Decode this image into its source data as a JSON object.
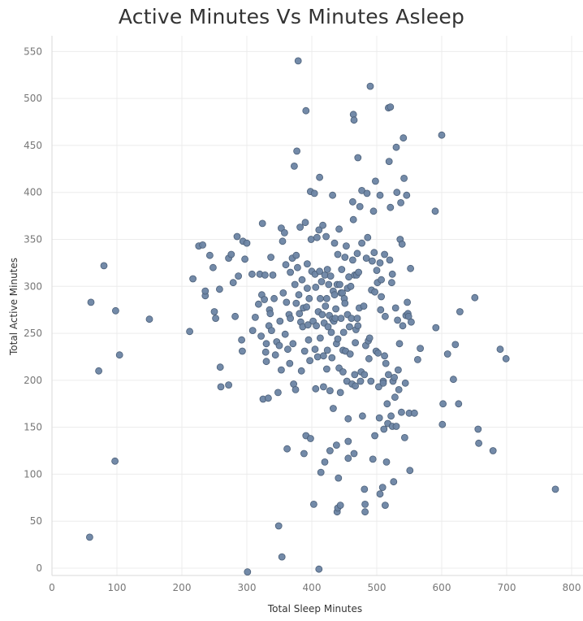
{
  "chart_data": {
    "type": "scatter",
    "title": "Active Minutes Vs Minutes Asleep",
    "xlabel": "Total Sleep Minutes",
    "ylabel": "Total Active Minutes",
    "xlim": [
      0,
      800
    ],
    "ylim": [
      0,
      550
    ],
    "xticks": [
      "0",
      "100",
      "200",
      "300",
      "400",
      "500",
      "600",
      "700",
      "800"
    ],
    "yticks": [
      "0",
      "50",
      "100",
      "150",
      "200",
      "250",
      "300",
      "350",
      "400",
      "450",
      "500",
      "550"
    ],
    "grid": true,
    "legend": "none",
    "marker_color": "#6b84a3",
    "marker_edge_color": "#4b5f78",
    "points": [
      [
        58,
        33
      ],
      [
        60,
        283
      ],
      [
        72,
        210
      ],
      [
        80,
        322
      ],
      [
        97,
        114
      ],
      [
        98,
        274
      ],
      [
        104,
        227
      ],
      [
        150,
        265
      ],
      [
        212,
        252
      ],
      [
        217,
        308
      ],
      [
        226,
        343
      ],
      [
        232,
        344
      ],
      [
        236,
        290
      ],
      [
        236,
        295
      ],
      [
        243,
        333
      ],
      [
        248,
        320
      ],
      [
        250,
        273
      ],
      [
        252,
        266
      ],
      [
        258,
        297
      ],
      [
        259,
        214
      ],
      [
        260,
        193
      ],
      [
        272,
        195
      ],
      [
        272,
        330
      ],
      [
        276,
        334
      ],
      [
        279,
        304
      ],
      [
        282,
        268
      ],
      [
        285,
        353
      ],
      [
        287,
        311
      ],
      [
        292,
        243
      ],
      [
        293,
        231
      ],
      [
        294,
        348
      ],
      [
        297,
        329
      ],
      [
        300,
        346
      ],
      [
        301,
        -4
      ],
      [
        308,
        313
      ],
      [
        309,
        253
      ],
      [
        313,
        267
      ],
      [
        318,
        281
      ],
      [
        320,
        313
      ],
      [
        322,
        247
      ],
      [
        323,
        291
      ],
      [
        324,
        367
      ],
      [
        325,
        180
      ],
      [
        327,
        286
      ],
      [
        328,
        312
      ],
      [
        329,
        230
      ],
      [
        330,
        220
      ],
      [
        330,
        239
      ],
      [
        333,
        181
      ],
      [
        334,
        258
      ],
      [
        335,
        275
      ],
      [
        336,
        271
      ],
      [
        337,
        331
      ],
      [
        338,
        253
      ],
      [
        340,
        312
      ],
      [
        342,
        287
      ],
      [
        344,
        227
      ],
      [
        346,
        241
      ],
      [
        348,
        187
      ],
      [
        349,
        45
      ],
      [
        350,
        237
      ],
      [
        351,
        263
      ],
      [
        353,
        362
      ],
      [
        353,
        211
      ],
      [
        354,
        12
      ],
      [
        355,
        348
      ],
      [
        356,
        293
      ],
      [
        358,
        357
      ],
      [
        359,
        249
      ],
      [
        360,
        323
      ],
      [
        361,
        283
      ],
      [
        362,
        127
      ],
      [
        363,
        233
      ],
      [
        365,
        270
      ],
      [
        366,
        218
      ],
      [
        367,
        315
      ],
      [
        367,
        266
      ],
      [
        370,
        330
      ],
      [
        371,
        239
      ],
      [
        372,
        196
      ],
      [
        373,
        428
      ],
      [
        374,
        302
      ],
      [
        375,
        190
      ],
      [
        376,
        333
      ],
      [
        376,
        282
      ],
      [
        377,
        444
      ],
      [
        378,
        320
      ],
      [
        379,
        540
      ],
      [
        380,
        291
      ],
      [
        381,
        271
      ],
      [
        382,
        363
      ],
      [
        383,
        262
      ],
      [
        384,
        210
      ],
      [
        385,
        307
      ],
      [
        386,
        257
      ],
      [
        387,
        277
      ],
      [
        388,
        122
      ],
      [
        389,
        231
      ],
      [
        390,
        368
      ],
      [
        391,
        487
      ],
      [
        391,
        141
      ],
      [
        392,
        278
      ],
      [
        393,
        324
      ],
      [
        393,
        298
      ],
      [
        394,
        259
      ],
      [
        395,
        243
      ],
      [
        396,
        287
      ],
      [
        397,
        221
      ],
      [
        398,
        401
      ],
      [
        398,
        138
      ],
      [
        399,
        350
      ],
      [
        400,
        316
      ],
      [
        402,
        263
      ],
      [
        403,
        68
      ],
      [
        404,
        399
      ],
      [
        405,
        313
      ],
      [
        405,
        233
      ],
      [
        406,
        191
      ],
      [
        406,
        299
      ],
      [
        407,
        258
      ],
      [
        408,
        352
      ],
      [
        409,
        225
      ],
      [
        410,
        273
      ],
      [
        411,
        -1
      ],
      [
        411,
        360
      ],
      [
        412,
        316
      ],
      [
        412,
        416
      ],
      [
        413,
        287
      ],
      [
        413,
        245
      ],
      [
        414,
        102
      ],
      [
        415,
        305
      ],
      [
        416,
        270
      ],
      [
        417,
        365
      ],
      [
        418,
        226
      ],
      [
        418,
        193
      ],
      [
        419,
        261
      ],
      [
        420,
        312
      ],
      [
        420,
        113
      ],
      [
        421,
        279
      ],
      [
        422,
        353
      ],
      [
        423,
        287
      ],
      [
        423,
        212
      ],
      [
        424,
        318
      ],
      [
        424,
        232
      ],
      [
        425,
        257
      ],
      [
        426,
        302
      ],
      [
        427,
        269
      ],
      [
        428,
        189
      ],
      [
        428,
        125
      ],
      [
        429,
        311
      ],
      [
        430,
        251
      ],
      [
        431,
        224
      ],
      [
        432,
        265
      ],
      [
        432,
        397
      ],
      [
        433,
        170
      ],
      [
        433,
        295
      ],
      [
        434,
        263
      ],
      [
        435,
        346
      ],
      [
        435,
        291
      ],
      [
        436,
        266
      ],
      [
        437,
        276
      ],
      [
        438,
        239
      ],
      [
        438,
        131
      ],
      [
        439,
        60
      ],
      [
        439,
        302
      ],
      [
        440,
        334
      ],
      [
        440,
        64
      ],
      [
        440,
        244
      ],
      [
        441,
        96
      ],
      [
        442,
        361
      ],
      [
        442,
        213
      ],
      [
        443,
        302
      ],
      [
        444,
        67
      ],
      [
        444,
        187
      ],
      [
        445,
        266
      ],
      [
        445,
        293
      ],
      [
        446,
        318
      ],
      [
        447,
        293
      ],
      [
        448,
        232
      ],
      [
        448,
        209
      ],
      [
        449,
        251
      ],
      [
        450,
        287
      ],
      [
        451,
        282
      ],
      [
        451,
        331
      ],
      [
        452,
        231
      ],
      [
        453,
        343
      ],
      [
        454,
        199
      ],
      [
        455,
        270
      ],
      [
        455,
        298
      ],
      [
        456,
        159
      ],
      [
        456,
        135
      ],
      [
        456,
        117
      ],
      [
        457,
        310
      ],
      [
        458,
        257
      ],
      [
        459,
        228
      ],
      [
        460,
        300
      ],
      [
        461,
        266
      ],
      [
        462,
        196
      ],
      [
        463,
        390
      ],
      [
        463,
        328
      ],
      [
        464,
        483
      ],
      [
        464,
        371
      ],
      [
        465,
        477
      ],
      [
        465,
        122
      ],
      [
        466,
        312
      ],
      [
        466,
        206
      ],
      [
        467,
        240
      ],
      [
        467,
        194
      ],
      [
        468,
        254
      ],
      [
        469,
        312
      ],
      [
        470,
        335
      ],
      [
        470,
        266
      ],
      [
        471,
        437
      ],
      [
        471,
        258
      ],
      [
        472,
        315
      ],
      [
        473,
        277
      ],
      [
        474,
        385
      ],
      [
        475,
        199
      ],
      [
        476,
        209
      ],
      [
        477,
        346
      ],
      [
        477,
        402
      ],
      [
        478,
        162
      ],
      [
        480,
        279
      ],
      [
        481,
        84
      ],
      [
        481,
        206
      ],
      [
        482,
        60
      ],
      [
        482,
        68
      ],
      [
        483,
        237
      ],
      [
        484,
        330
      ],
      [
        485,
        399
      ],
      [
        486,
        352
      ],
      [
        487,
        242
      ],
      [
        488,
        223
      ],
      [
        489,
        245
      ],
      [
        490,
        513
      ],
      [
        491,
        199
      ],
      [
        492,
        296
      ],
      [
        493,
        327
      ],
      [
        494,
        116
      ],
      [
        495,
        380
      ],
      [
        496,
        336
      ],
      [
        497,
        294
      ],
      [
        497,
        141
      ],
      [
        498,
        412
      ],
      [
        499,
        231
      ],
      [
        500,
        317
      ],
      [
        501,
        304
      ],
      [
        502,
        229
      ],
      [
        503,
        193
      ],
      [
        504,
        160
      ],
      [
        505,
        397
      ],
      [
        505,
        325
      ],
      [
        505,
        79
      ],
      [
        506,
        275
      ],
      [
        507,
        307
      ],
      [
        507,
        289
      ],
      [
        509,
        86
      ],
      [
        510,
        199
      ],
      [
        510,
        197
      ],
      [
        511,
        148
      ],
      [
        512,
        334
      ],
      [
        512,
        226
      ],
      [
        513,
        268
      ],
      [
        513,
        67
      ],
      [
        514,
        218
      ],
      [
        515,
        113
      ],
      [
        516,
        175
      ],
      [
        517,
        154
      ],
      [
        518,
        206
      ],
      [
        518,
        490
      ],
      [
        519,
        433
      ],
      [
        520,
        328
      ],
      [
        521,
        491
      ],
      [
        521,
        384
      ],
      [
        522,
        162
      ],
      [
        523,
        304
      ],
      [
        524,
        313
      ],
      [
        524,
        151
      ],
      [
        525,
        199
      ],
      [
        526,
        92
      ],
      [
        527,
        203
      ],
      [
        528,
        182
      ],
      [
        529,
        277
      ],
      [
        530,
        448
      ],
      [
        530,
        151
      ],
      [
        531,
        400
      ],
      [
        532,
        264
      ],
      [
        533,
        211
      ],
      [
        534,
        190
      ],
      [
        535,
        239
      ],
      [
        536,
        350
      ],
      [
        537,
        389
      ],
      [
        538,
        166
      ],
      [
        539,
        345
      ],
      [
        540,
        258
      ],
      [
        541,
        458
      ],
      [
        542,
        415
      ],
      [
        543,
        139
      ],
      [
        544,
        197
      ],
      [
        545,
        269
      ],
      [
        546,
        397
      ],
      [
        547,
        283
      ],
      [
        548,
        271
      ],
      [
        549,
        268
      ],
      [
        550,
        165
      ],
      [
        551,
        104
      ],
      [
        552,
        319
      ],
      [
        553,
        262
      ],
      [
        558,
        165
      ],
      [
        563,
        222
      ],
      [
        567,
        234
      ],
      [
        590,
        380
      ],
      [
        591,
        256
      ],
      [
        600,
        461
      ],
      [
        601,
        153
      ],
      [
        602,
        175
      ],
      [
        609,
        228
      ],
      [
        618,
        201
      ],
      [
        621,
        238
      ],
      [
        626,
        175
      ],
      [
        628,
        273
      ],
      [
        651,
        288
      ],
      [
        656,
        148
      ],
      [
        657,
        133
      ],
      [
        679,
        125
      ],
      [
        690,
        233
      ],
      [
        699,
        223
      ],
      [
        775,
        84
      ]
    ]
  }
}
